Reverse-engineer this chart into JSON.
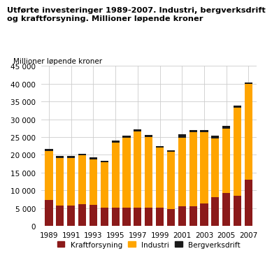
{
  "title_line1": "Utførte investeringer 1989-2007. Industri, bergverksdrift",
  "title_line2": "og kraftforsyning. Millioner løpende kroner",
  "axis_label": "Millioner løpende kroner",
  "years": [
    1989,
    1990,
    1991,
    1992,
    1993,
    1994,
    1995,
    1996,
    1997,
    1998,
    1999,
    2000,
    2001,
    2002,
    2003,
    2004,
    2005,
    2006,
    2007
  ],
  "kraftforsyning": [
    7200,
    5700,
    5700,
    6100,
    6000,
    5100,
    5200,
    5100,
    5100,
    5200,
    5100,
    4800,
    5500,
    5500,
    6400,
    8000,
    9200,
    8500,
    12900
  ],
  "industri": [
    13800,
    13400,
    13400,
    13700,
    12700,
    12900,
    18300,
    19700,
    21400,
    19800,
    17000,
    16000,
    19400,
    20800,
    19900,
    16700,
    18200,
    24700,
    27000
  ],
  "bergverksdrift": [
    700,
    500,
    500,
    500,
    500,
    400,
    500,
    600,
    700,
    500,
    300,
    400,
    800,
    700,
    600,
    700,
    700,
    700,
    500
  ],
  "kraftforsyning_color": "#8B1A1A",
  "industri_color": "#FFA500",
  "bergverksdrift_color": "#1a1a1a",
  "ylim": [
    0,
    45000
  ],
  "yticks": [
    0,
    5000,
    10000,
    15000,
    20000,
    25000,
    30000,
    35000,
    40000,
    45000
  ],
  "xtick_years": [
    1989,
    1991,
    1993,
    1995,
    1997,
    1999,
    2001,
    2003,
    2005,
    2007
  ],
  "background_color": "#ffffff",
  "grid_color": "#cccccc",
  "title_fontsize": 8.2,
  "tick_fontsize": 7.5,
  "legend_fontsize": 7.5,
  "axis_label_fontsize": 7.5
}
